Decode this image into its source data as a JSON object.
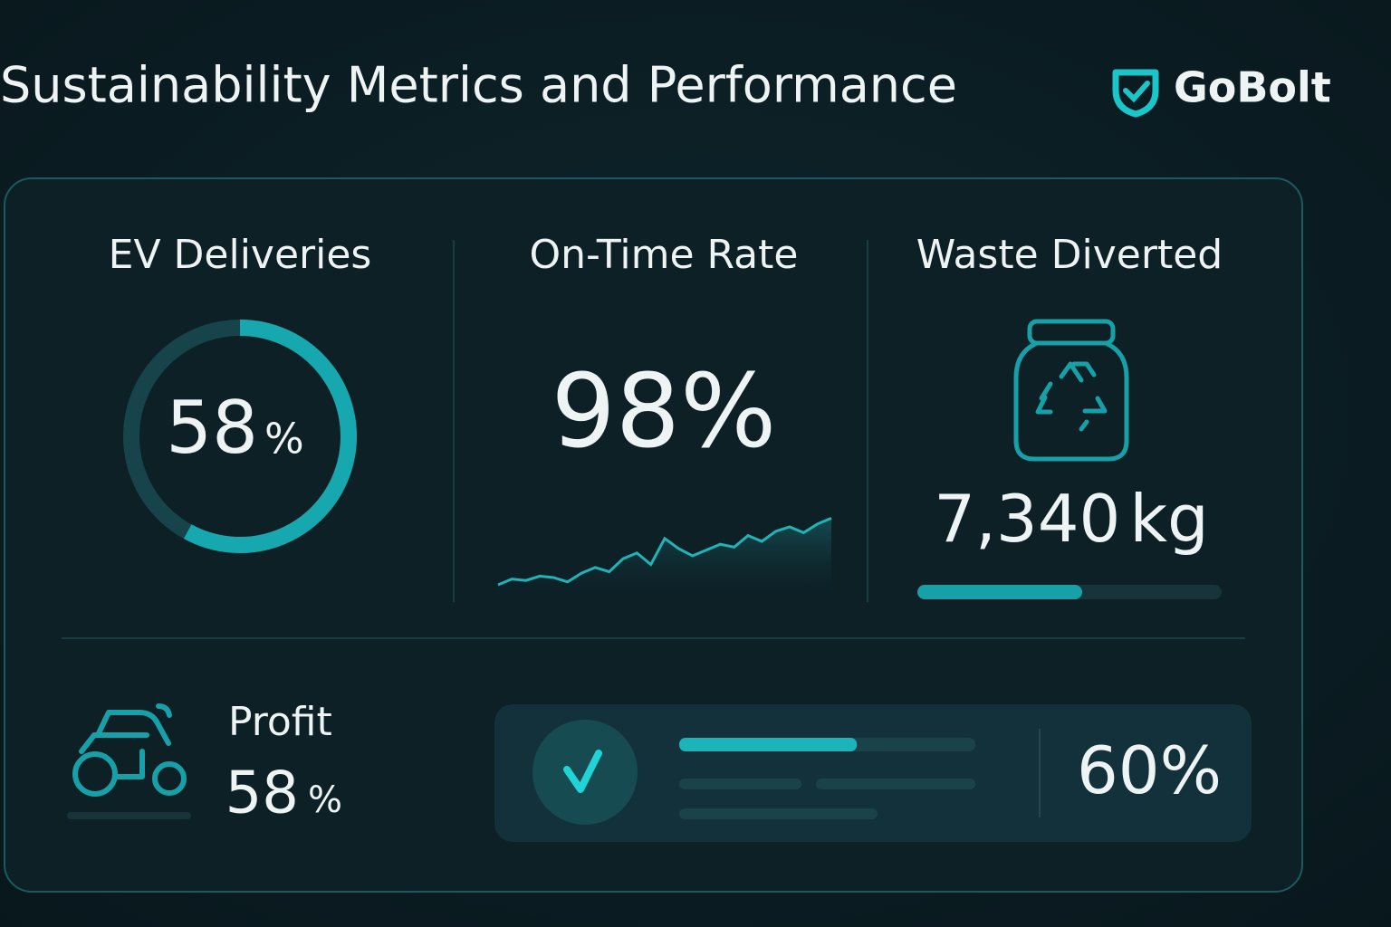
{
  "header": {
    "title": "Sustainability Metrics and Performance",
    "brand": "GoBolt"
  },
  "metrics": {
    "ev_deliveries": {
      "label": "EV Deliveries",
      "value": 58,
      "unit": "%"
    },
    "on_time_rate": {
      "label": "On-Time Rate",
      "value": 98,
      "unit": "%",
      "trend": [
        10,
        14,
        13,
        16,
        15,
        12,
        18,
        22,
        19,
        28,
        32,
        24,
        42,
        35,
        30,
        34,
        38,
        36,
        44,
        40,
        47,
        50,
        46,
        52,
        56
      ]
    },
    "waste_diverted": {
      "label": "Waste Diverted",
      "value": "7,340",
      "unit": "kg"
    },
    "profit": {
      "label": "Profit",
      "value": 58,
      "unit": "%"
    },
    "progress": {
      "value": 60,
      "unit": "%"
    }
  }
}
